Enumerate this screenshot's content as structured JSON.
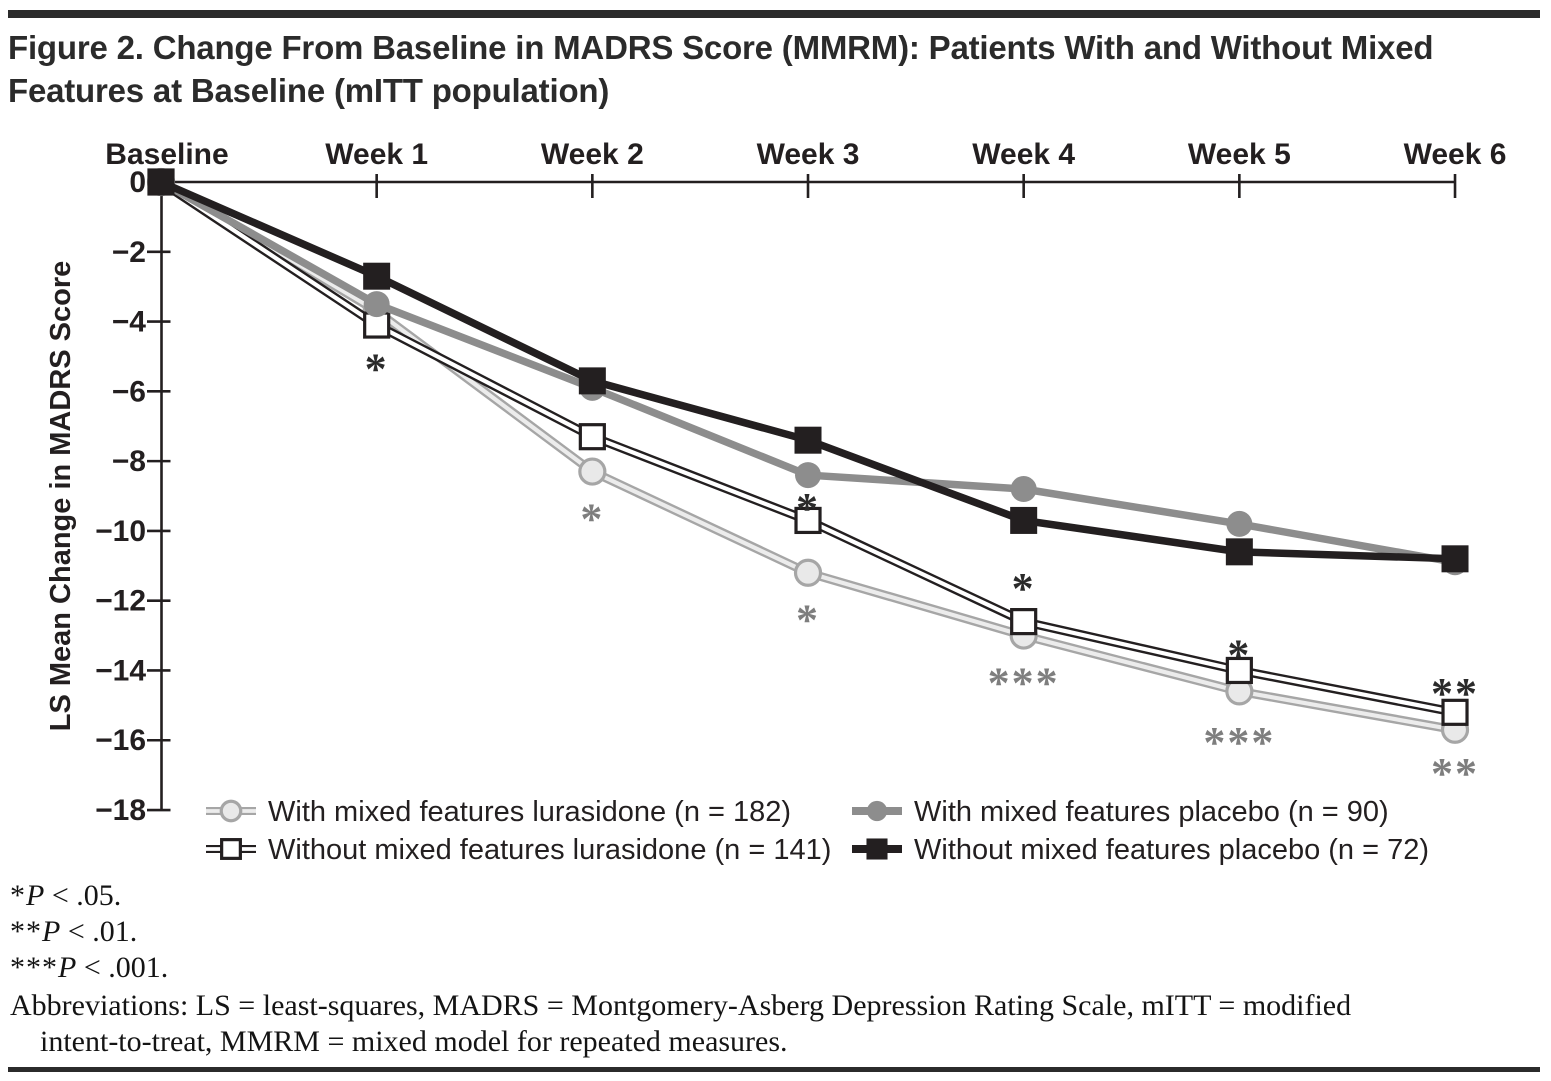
{
  "page": {
    "title_line1": "Figure 2. Change From Baseline in MADRS Score (MMRM): Patients With and Without Mixed",
    "title_line2": "Features at Baseline (mITT population)"
  },
  "footnotes": {
    "significance": [
      {
        "stars": "*",
        "p_label": "P",
        "rest": " < .05."
      },
      {
        "stars": "**",
        "p_label": "P",
        "rest": " < .01."
      },
      {
        "stars": "***",
        "p_label": "P",
        "rest": " < .001."
      }
    ],
    "abbreviations_line1": "Abbreviations: LS = least-squares, MADRS = Montgomery-Asberg Depression Rating Scale, mITT = modified",
    "abbreviations_line2": "intent-to-treat, MMRM = mixed model for repeated measures."
  },
  "chart_data": {
    "type": "line",
    "x_categories": [
      "Baseline",
      "Week 1",
      "Week 2",
      "Week 3",
      "Week 4",
      "Week 5",
      "Week 6"
    ],
    "ylabel": "LS Mean Change in MADRS Score",
    "ylim": [
      -18,
      0
    ],
    "y_ticks": [
      0,
      -2,
      -4,
      -6,
      -8,
      -10,
      -12,
      -14,
      -16,
      -18
    ],
    "y_tick_labels": [
      "0",
      "−2",
      "−4",
      "−6",
      "−8",
      "−10",
      "−12",
      "−14",
      "−16",
      "−18"
    ],
    "grid": "off",
    "legend_position": "bottom",
    "colors": {
      "dark": "#231f20",
      "gray": "#8d8d8d",
      "light_gray_line": "#a6a6a6",
      "light_gray_fill": "#e9e9e9",
      "asterisk_dark": "#2b2b2b",
      "asterisk_gray": "#7e7e7e",
      "axis": "#231f20"
    },
    "series": [
      {
        "key": "with_lurasidone",
        "name": "With mixed features lurasidone (n = 182)",
        "values": [
          0,
          -3.7,
          -8.3,
          -11.2,
          -13.0,
          -14.6,
          -15.7
        ],
        "marker": "circle",
        "marker_fill": "open",
        "line": "tube",
        "color": "#a6a6a6",
        "fill": "#e9e9e9",
        "inner": "#ececec"
      },
      {
        "key": "without_lurasidone",
        "name": "Without mixed features lurasidone (n = 141)",
        "values": [
          0,
          -4.1,
          -7.3,
          -9.7,
          -12.6,
          -14.0,
          -15.2
        ],
        "marker": "square",
        "marker_fill": "open",
        "line": "tube",
        "color": "#231f20",
        "fill": "#ffffff",
        "inner": "#ffffff"
      },
      {
        "key": "with_placebo",
        "name": "With mixed features placebo (n = 90)",
        "values": [
          0,
          -3.5,
          -5.9,
          -8.4,
          -8.8,
          -9.8,
          -10.9
        ],
        "marker": "circle",
        "marker_fill": "solid",
        "line": "solid",
        "color": "#8d8d8d",
        "fill": "#8d8d8d",
        "inner": "#8d8d8d"
      },
      {
        "key": "without_placebo",
        "name": "Without mixed features placebo (n = 72)",
        "values": [
          0,
          -2.7,
          -5.7,
          -7.4,
          -9.7,
          -10.6,
          -10.8
        ],
        "marker": "square",
        "marker_fill": "solid",
        "line": "solid",
        "color": "#231f20",
        "fill": "#231f20",
        "inner": "#231f20"
      }
    ],
    "annotations": [
      {
        "week": 1,
        "label": "*",
        "tone": "dark",
        "value": -5.2
      },
      {
        "week": 2,
        "label": "*",
        "tone": "gray",
        "value": -9.5
      },
      {
        "week": 3,
        "label": "*",
        "tone": "dark",
        "value": -9.2
      },
      {
        "week": 3,
        "label": "*",
        "tone": "gray",
        "value": -12.4
      },
      {
        "week": 4,
        "label": "*",
        "tone": "dark",
        "value": -11.5
      },
      {
        "week": 4,
        "label": "***",
        "tone": "gray",
        "value": -14.2
      },
      {
        "week": 5,
        "label": "*",
        "tone": "dark",
        "value": -13.4
      },
      {
        "week": 5,
        "label": "***",
        "tone": "gray",
        "value": -15.9
      },
      {
        "week": 6,
        "label": "**",
        "tone": "dark",
        "value": -14.5
      },
      {
        "week": 6,
        "label": "**",
        "tone": "gray",
        "value": -16.8
      }
    ],
    "legend": {
      "items": [
        {
          "series": "with_lurasidone",
          "row": 0,
          "col": 0
        },
        {
          "series": "without_lurasidone",
          "row": 1,
          "col": 0
        },
        {
          "series": "with_placebo",
          "row": 0,
          "col": 1
        },
        {
          "series": "without_placebo",
          "row": 1,
          "col": 1
        }
      ]
    }
  }
}
